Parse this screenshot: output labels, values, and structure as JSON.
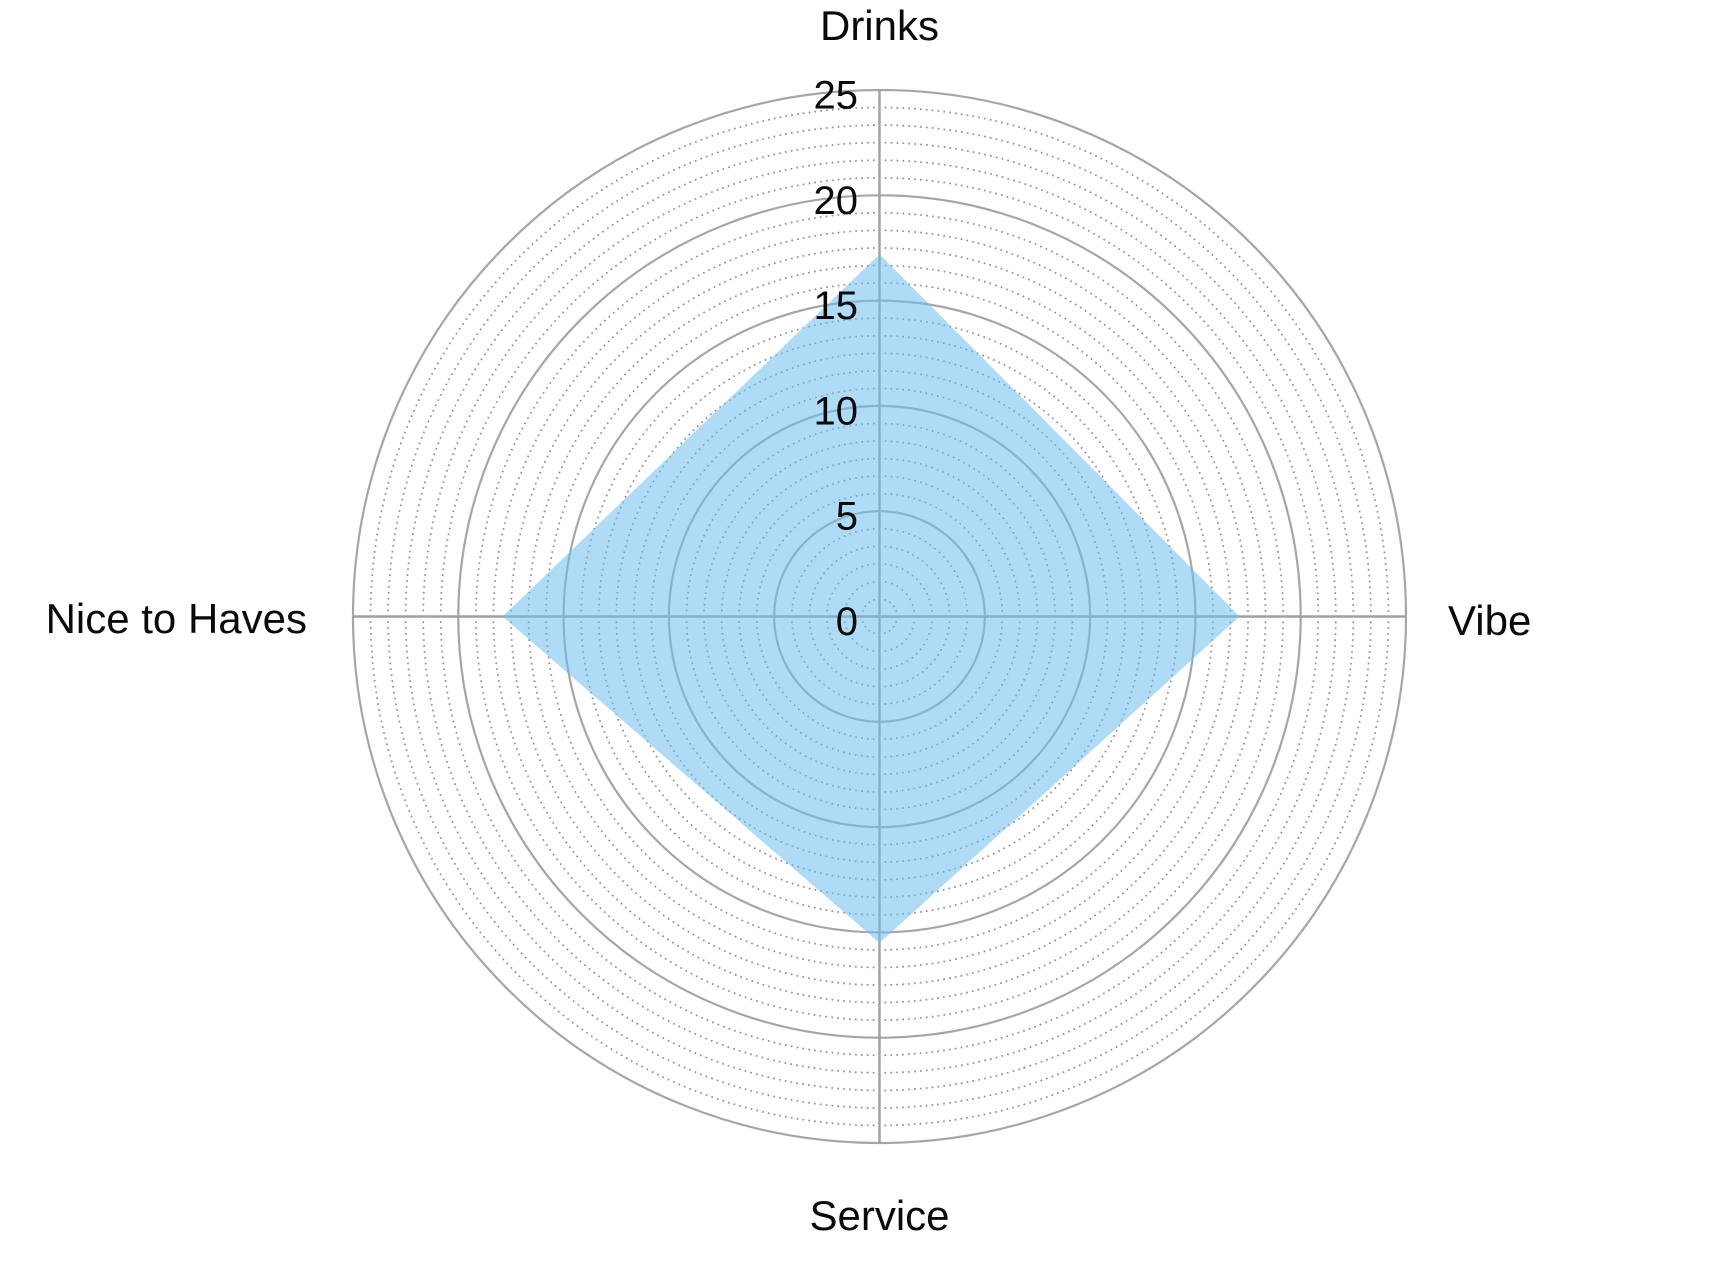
{
  "chart_data": {
    "type": "radar",
    "title": "",
    "categories": [
      "Drinks",
      "Vibe",
      "Service",
      "Nice to Haves"
    ],
    "values": [
      17.2,
      17.1,
      15.5,
      17.9
    ],
    "r_axis": {
      "min": 0,
      "max": 25,
      "major_step": 5,
      "minor_subdivisions": 6,
      "tick_labels": [
        "0",
        "5",
        "10",
        "15",
        "20",
        "25"
      ]
    },
    "layout_hints": {
      "grid": "polar; solid rings every 5 units, dotted rings at 5/6-unit steps",
      "axis_lines": "horizontal and vertical spokes only",
      "legend": "none",
      "tick_label_position": "left of vertical spoke, centered on each ring"
    },
    "colors": {
      "fill": "#6FBEF0",
      "fill_opacity": 0.55,
      "major_ring": "#a6a6a6",
      "minor_ring": "#8f8f8f",
      "axis_line": "#a0a0a0",
      "label_text": "#0a0a0a",
      "background": "#ffffff"
    }
  }
}
